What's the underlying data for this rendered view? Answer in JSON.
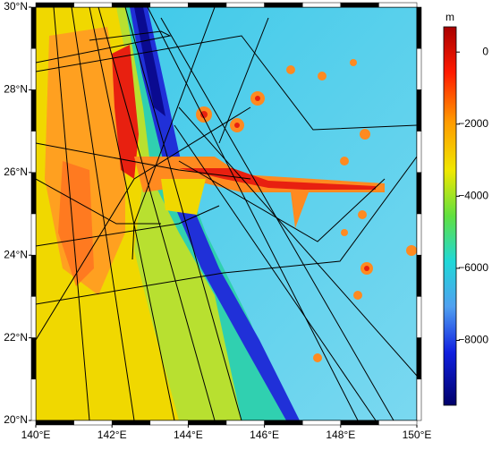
{
  "map": {
    "type": "map",
    "xlim": [
      140,
      150
    ],
    "ylim": [
      20,
      30
    ],
    "xticks": [
      {
        "value": 140,
        "label": "140°E"
      },
      {
        "value": 142,
        "label": "142°E"
      },
      {
        "value": 144,
        "label": "144°E"
      },
      {
        "value": 146,
        "label": "146°E"
      },
      {
        "value": 148,
        "label": "148°E"
      },
      {
        "value": 150,
        "label": "150°E"
      }
    ],
    "yticks": [
      {
        "value": 20,
        "label": "20°N"
      },
      {
        "value": 22,
        "label": "22°N"
      },
      {
        "value": 24,
        "label": "24°N"
      },
      {
        "value": 26,
        "label": "26°N"
      },
      {
        "value": 28,
        "label": "28°N"
      },
      {
        "value": 30,
        "label": "30°N"
      }
    ],
    "colorbar": {
      "label": "m",
      "lim": [
        -9800,
        700
      ],
      "ticks": [
        0,
        {
          "value": -2000,
          "label": "−2000"
        },
        {
          "value": -4000,
          "label": "−4000"
        },
        {
          "value": -6000,
          "label": "−6000"
        },
        {
          "value": -8000,
          "label": "−8000"
        }
      ]
    }
  }
}
